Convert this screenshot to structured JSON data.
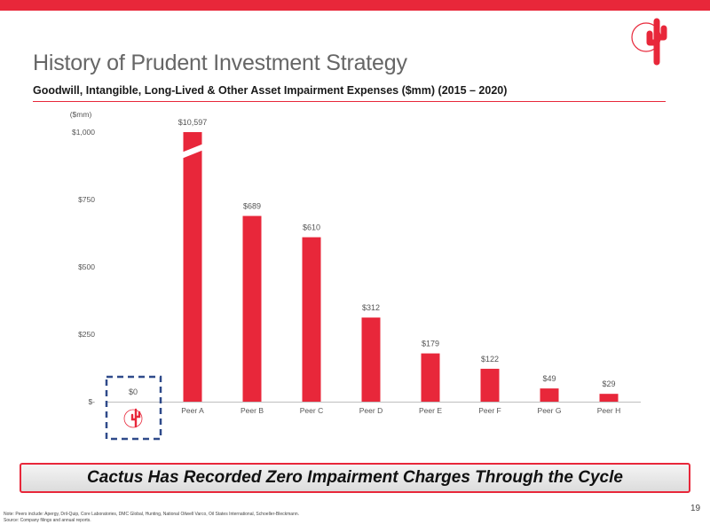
{
  "header": {
    "title": "History of Prudent Investment Strategy",
    "subtitle": "Goodwill, Intangible, Long-Lived & Other Asset Impairment Expenses ($mm) (2015 – 2020)"
  },
  "chart_data": {
    "type": "bar",
    "unit_label": "($mm)",
    "categories": [
      "",
      "Peer A",
      "Peer B",
      "Peer C",
      "Peer D",
      "Peer E",
      "Peer F",
      "Peer G",
      "Peer H"
    ],
    "values": [
      0,
      10597,
      689,
      610,
      312,
      179,
      122,
      49,
      29
    ],
    "data_labels": [
      "$0",
      "$10,597",
      "$689",
      "$610",
      "$312",
      "$179",
      "$122",
      "$49",
      "$29"
    ],
    "y_ticks": [
      0,
      250,
      500,
      750,
      1000
    ],
    "y_tick_labels": [
      "$-",
      "$250",
      "$500",
      "$750",
      "$1,000"
    ],
    "ylim": [
      0,
      1000
    ],
    "axis_break": true,
    "highlight_category_index": 0,
    "bar_color": "#e8273a",
    "grid": false,
    "legend": "none"
  },
  "callout": {
    "text": "Cactus Has Recorded Zero Impairment Charges Through the Cycle"
  },
  "footer": {
    "note": "Note: Peers include: Apergy, Dril-Quip, Core Laboratories, DMC Global, Hunting, National Oilwell Varco, Oil States International, Schoeller-Bleckmann.",
    "source": "Source: Company filings and annual reports.",
    "page_number": "19"
  },
  "colors": {
    "accent": "#e8273a",
    "highlight_box": "#2f4a8a"
  }
}
